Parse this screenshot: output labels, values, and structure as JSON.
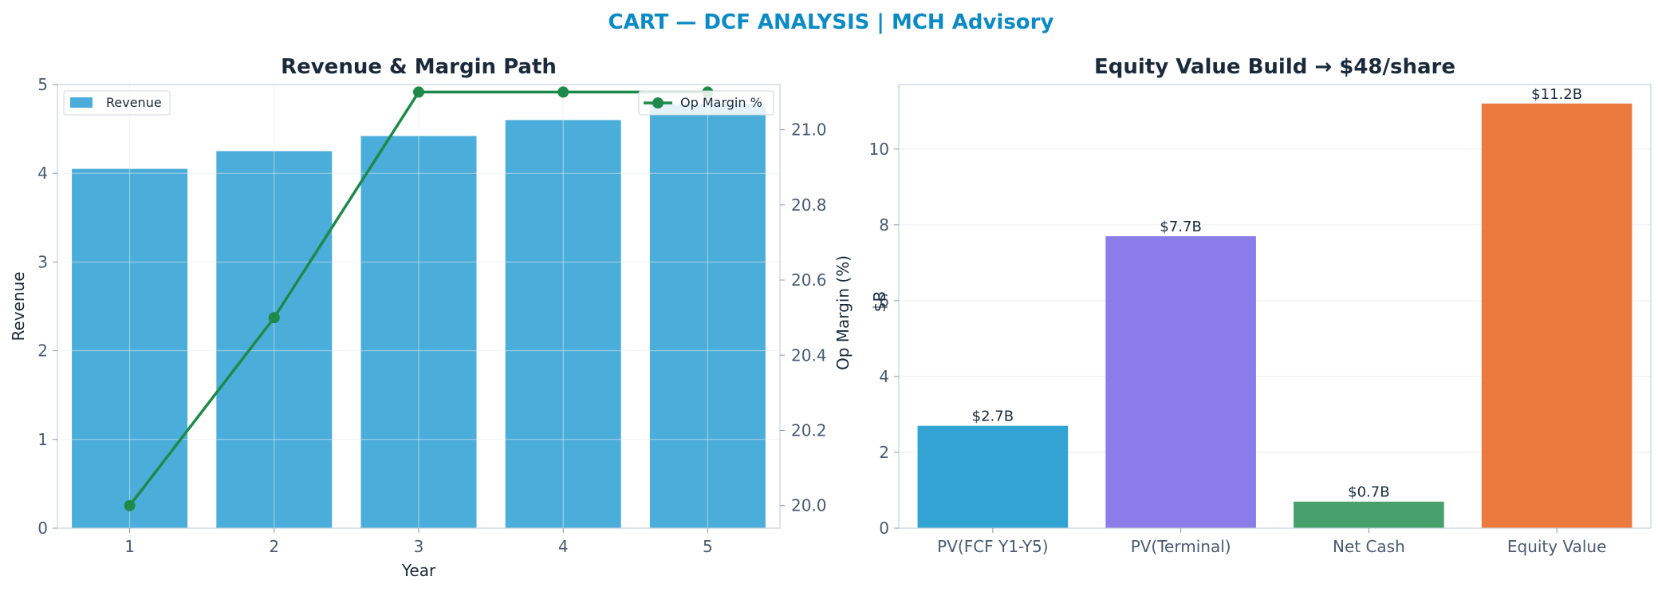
{
  "suptitle": "CART — DCF ANALYSIS | MCH Advisory",
  "chart_data": [
    {
      "type": "bar",
      "title": "Revenue & Margin Path",
      "xlabel": "Year",
      "ylabel": "Revenue",
      "y2label": "Op Margin (%)",
      "categories": [
        "1",
        "2",
        "3",
        "4",
        "5"
      ],
      "ylim": [
        0,
        5
      ],
      "yticks": [
        "0",
        "1",
        "2",
        "3",
        "4",
        "5"
      ],
      "y2lim": [
        19.94,
        21.12
      ],
      "y2ticks": [
        "20.0",
        "20.2",
        "20.4",
        "20.6",
        "20.8",
        "21.0"
      ],
      "grid": true,
      "series": [
        {
          "name": "Revenue",
          "type": "bar",
          "axis": "left",
          "color": "#4badd9",
          "values": [
            4.05,
            4.25,
            4.42,
            4.6,
            4.78
          ]
        },
        {
          "name": "Op Margin %",
          "type": "line",
          "axis": "right",
          "color": "#1e8a4a",
          "values": [
            20.0,
            20.5,
            21.1,
            21.1,
            21.1
          ]
        }
      ],
      "legend_left": "top-left",
      "legend_right": "top-right"
    },
    {
      "type": "bar",
      "title": "Equity Value Build → $48/share",
      "xlabel": "",
      "ylabel": "$B",
      "categories": [
        "PV(FCF Y1-Y5)",
        "PV(Terminal)",
        "Net Cash",
        "Equity Value"
      ],
      "values": [
        2.7,
        7.7,
        0.7,
        11.2
      ],
      "data_labels": [
        "$2.7B",
        "$7.7B",
        "$0.7B",
        "$11.2B"
      ],
      "colors": [
        "#33a3d4",
        "#8a7dea",
        "#48a06c",
        "#ec7a3e"
      ],
      "ylim": [
        0,
        11.7
      ],
      "yticks": [
        "0",
        "2",
        "4",
        "6",
        "8",
        "10"
      ],
      "grid": true
    }
  ]
}
